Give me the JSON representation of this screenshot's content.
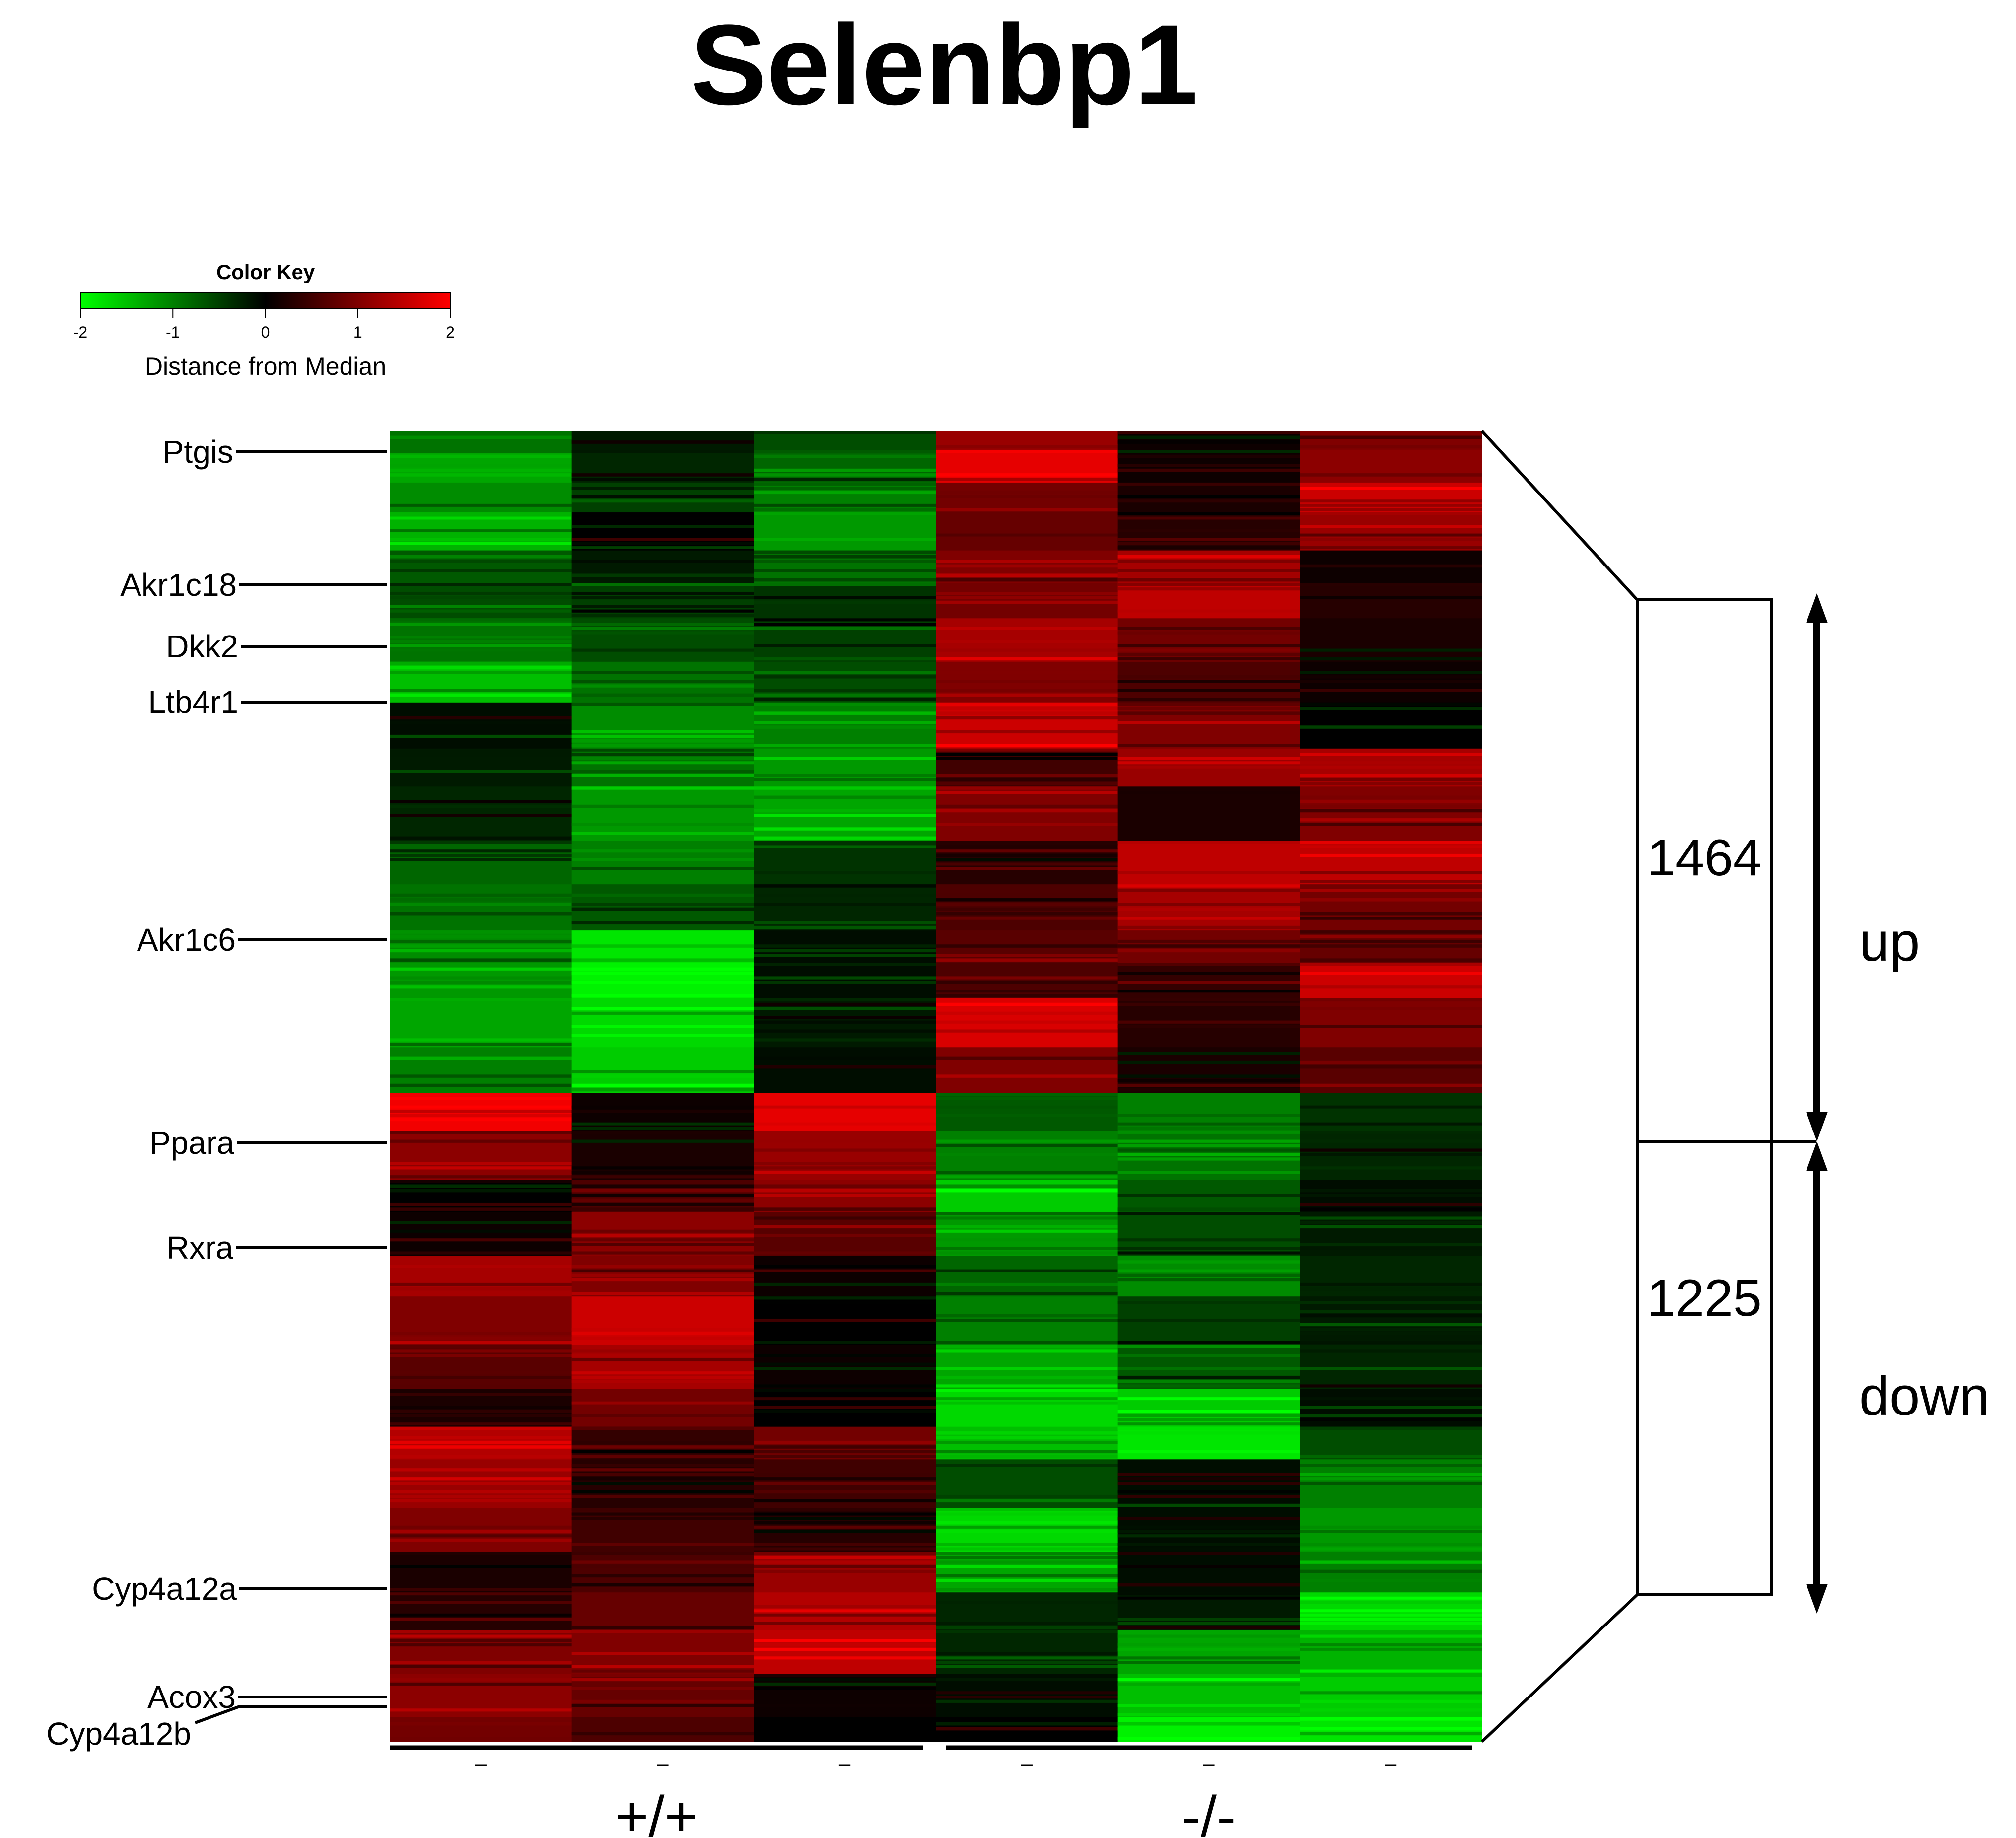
{
  "chart_data": {
    "type": "heatmap",
    "title": "Selenbp1",
    "color_key": {
      "title": "Color Key",
      "xlabel": "Distance from Median",
      "ticks": [
        "-2",
        "-1",
        "0",
        "1",
        "2"
      ],
      "range": [
        -2,
        2
      ],
      "colors": {
        "low": "#00ff00",
        "mid": "#000000",
        "high": "#ff0000"
      }
    },
    "columns": [
      "",
      "",
      "",
      "",
      "",
      ""
    ],
    "column_ticks": [
      "_",
      "_",
      "_",
      "_",
      "_",
      "_"
    ],
    "groups": [
      {
        "label": "+/+",
        "columns": [
          0,
          1,
          2
        ]
      },
      {
        "label": "-/-",
        "columns": [
          3,
          4,
          5
        ]
      }
    ],
    "gene_labels": [
      {
        "name": "Ptgis",
        "row_fraction": 0.018
      },
      {
        "name": "Akr1c18",
        "row_fraction": 0.145
      },
      {
        "name": "Dkk2",
        "row_fraction": 0.204
      },
      {
        "name": "Ltb4r1",
        "row_fraction": 0.258
      },
      {
        "name": "Akr1c6",
        "row_fraction": 0.483
      },
      {
        "name": "Ppara",
        "row_fraction": 0.676
      },
      {
        "name": "Rxra",
        "row_fraction": 0.778
      },
      {
        "name": "Cyp4a12a",
        "row_fraction": 1.102
      },
      {
        "name": "Acox3",
        "row_fraction": 0.964
      },
      {
        "name": "Cyp4a12b",
        "row_fraction": 0.972
      }
    ],
    "clusters": [
      {
        "label": "up",
        "count": "1464",
        "rows": 1464
      },
      {
        "label": "down",
        "count": "1225",
        "rows": 1225
      }
    ],
    "row_blocks": [
      {
        "rows": 35,
        "values": [
          -0.9,
          -0.2,
          -0.6,
          1.2,
          0.1,
          1.0
        ]
      },
      {
        "rows": 60,
        "values": [
          -1.3,
          -0.3,
          -0.8,
          1.8,
          0.1,
          1.1
        ]
      },
      {
        "rows": 55,
        "values": [
          -1.1,
          -0.5,
          -1.0,
          0.9,
          0.2,
          1.6
        ]
      },
      {
        "rows": 70,
        "values": [
          -1.4,
          0.0,
          -1.2,
          0.8,
          0.3,
          1.2
        ]
      },
      {
        "rows": 60,
        "values": [
          -0.7,
          -0.2,
          -0.9,
          1.0,
          1.3,
          0.1
        ]
      },
      {
        "rows": 65,
        "values": [
          -0.6,
          -0.5,
          -0.4,
          0.9,
          1.5,
          0.3
        ]
      },
      {
        "rows": 80,
        "values": [
          -0.9,
          -0.6,
          -0.5,
          1.3,
          0.9,
          0.2
        ]
      },
      {
        "rows": 75,
        "values": [
          -1.5,
          -0.9,
          -0.6,
          1.0,
          0.6,
          0.1
        ]
      },
      {
        "rows": 85,
        "values": [
          -0.1,
          -1.1,
          -1.0,
          1.6,
          1.0,
          0.0
        ]
      },
      {
        "rows": 70,
        "values": [
          -0.2,
          -0.9,
          -1.2,
          0.5,
          1.2,
          1.3
        ]
      },
      {
        "rows": 100,
        "values": [
          -0.3,
          -1.2,
          -1.3,
          1.0,
          0.2,
          1.0
        ]
      },
      {
        "rows": 80,
        "values": [
          -0.8,
          -1.0,
          -0.4,
          0.3,
          1.5,
          1.5
        ]
      },
      {
        "rows": 85,
        "values": [
          -0.9,
          -0.7,
          -0.3,
          0.6,
          1.3,
          0.9
        ]
      },
      {
        "rows": 60,
        "values": [
          -1.1,
          -1.8,
          -0.1,
          0.7,
          0.9,
          0.8
        ]
      },
      {
        "rows": 65,
        "values": [
          -1.2,
          -1.9,
          -0.1,
          0.6,
          0.4,
          1.6
        ]
      },
      {
        "rows": 90,
        "values": [
          -1.3,
          -1.7,
          -0.2,
          1.7,
          0.3,
          1.0
        ]
      },
      {
        "rows": 84,
        "values": [
          -1.0,
          -1.6,
          -0.1,
          1.0,
          0.2,
          0.7
        ]
      },
      {
        "rows": 70,
        "values": [
          1.9,
          0.1,
          1.8,
          -0.7,
          -1.0,
          -0.4
        ]
      },
      {
        "rows": 90,
        "values": [
          1.1,
          0.2,
          1.2,
          -1.0,
          -0.9,
          -0.3
        ]
      },
      {
        "rows": 60,
        "values": [
          0.0,
          0.6,
          1.1,
          -1.6,
          -0.7,
          -0.1
        ]
      },
      {
        "rows": 80,
        "values": [
          0.1,
          1.1,
          0.7,
          -1.2,
          -0.6,
          -0.2
        ]
      },
      {
        "rows": 75,
        "values": [
          1.3,
          1.0,
          0.1,
          -0.8,
          -1.1,
          -0.3
        ]
      },
      {
        "rows": 90,
        "values": [
          1.0,
          1.6,
          0.0,
          -1.0,
          -0.5,
          -0.2
        ]
      },
      {
        "rows": 80,
        "values": [
          0.7,
          1.3,
          0.1,
          -1.3,
          -0.7,
          -0.3
        ]
      },
      {
        "rows": 70,
        "values": [
          0.2,
          0.9,
          0.0,
          -1.7,
          -1.6,
          -0.1
        ]
      },
      {
        "rows": 60,
        "values": [
          1.4,
          0.4,
          0.9,
          -1.5,
          -1.8,
          -0.6
        ]
      },
      {
        "rows": 90,
        "values": [
          1.2,
          0.3,
          0.5,
          -0.6,
          -0.1,
          -1.0
        ]
      },
      {
        "rows": 80,
        "values": [
          1.0,
          0.5,
          0.3,
          -1.7,
          -0.1,
          -1.2
        ]
      },
      {
        "rows": 75,
        "values": [
          0.2,
          0.6,
          1.2,
          -1.3,
          -0.1,
          -1.0
        ]
      },
      {
        "rows": 70,
        "values": [
          0.3,
          0.8,
          1.4,
          -0.3,
          -0.2,
          -1.7
        ]
      },
      {
        "rows": 80,
        "values": [
          1.0,
          1.0,
          1.5,
          -0.3,
          -1.3,
          -1.4
        ]
      },
      {
        "rows": 80,
        "values": [
          1.1,
          0.8,
          0.1,
          -0.1,
          -1.5,
          -1.6
        ]
      },
      {
        "rows": 45,
        "values": [
          0.9,
          0.6,
          0.0,
          0.0,
          -1.9,
          -1.8
        ]
      }
    ]
  }
}
